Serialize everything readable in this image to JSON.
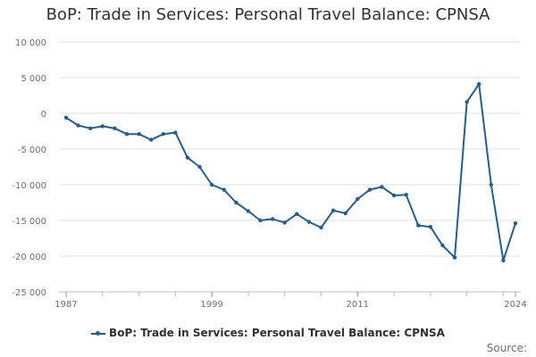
{
  "chart_data": {
    "type": "line",
    "title": "BoP: Trade in Services: Personal Travel Balance: CPNSA",
    "xlabel": "",
    "ylabel": "",
    "x": [
      1987,
      1988,
      1989,
      1990,
      1991,
      1992,
      1993,
      1994,
      1995,
      1996,
      1997,
      1998,
      1999,
      2000,
      2001,
      2002,
      2003,
      2004,
      2005,
      2006,
      2007,
      2008,
      2009,
      2010,
      2011,
      2012,
      2013,
      2014,
      2015,
      2016,
      2017,
      2018,
      2019,
      2020,
      2021,
      2022,
      2023,
      2024
    ],
    "series": [
      {
        "name": "BoP: Trade in Services: Personal Travel Balance: CPNSA",
        "color": "#206095",
        "values": [
          -600,
          -1700,
          -2100,
          -1800,
          -2100,
          -2900,
          -2900,
          -3700,
          -2900,
          -2700,
          -6200,
          -7500,
          -10000,
          -10700,
          -12500,
          -13700,
          -15000,
          -14800,
          -15300,
          -14100,
          -15200,
          -16000,
          -13600,
          -14000,
          -12000,
          -10700,
          -10300,
          -11500,
          -11400,
          -15700,
          -15900,
          -18500,
          -20200,
          1600,
          4100,
          -10000,
          -20600,
          -15400
        ]
      }
    ],
    "xlim": [
      1987,
      2024
    ],
    "ylim": [
      -25000,
      10000
    ],
    "ytick_values": [
      10000,
      5000,
      0,
      -5000,
      -10000,
      -15000,
      -20000,
      -25000
    ],
    "ytick_labels": [
      "10 000",
      "5 000",
      "0",
      "-5 000",
      "-10 000",
      "-15 000",
      "-20 000",
      "-25 000"
    ],
    "xtick_values": [
      1987,
      1999,
      2011,
      2024
    ],
    "xtick_labels": [
      "1987",
      "1999",
      "2011",
      "2024"
    ],
    "grid": true,
    "legend_position": "bottom"
  },
  "source_label": "Source:"
}
